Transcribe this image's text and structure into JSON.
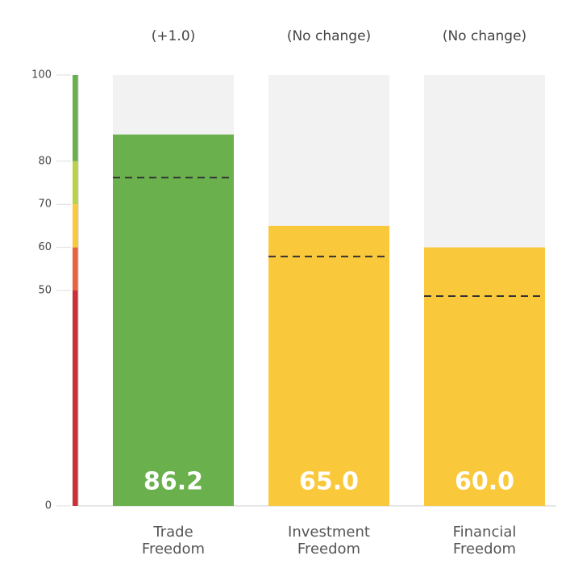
{
  "chart_data": {
    "type": "bar",
    "categories": [
      "Trade Freedom",
      "Investment Freedom",
      "Financial Freedom"
    ],
    "values": [
      86.2,
      65.0,
      60.0
    ],
    "value_labels": [
      "86.2",
      "65.0",
      "60.0"
    ],
    "annotations": [
      "(+1.0)",
      "(No change)",
      "(No change)"
    ],
    "colors": [
      "#6ab04c",
      "#f9c93b",
      "#f9c93b"
    ],
    "reference_values": [
      76.2,
      57.9,
      48.7
    ],
    "ylim": [
      0,
      100
    ],
    "yticks": [
      0,
      50,
      60,
      70,
      80,
      100
    ],
    "color_bands": [
      {
        "from": 0,
        "to": 50,
        "color": "#c9303a"
      },
      {
        "from": 50,
        "to": 60,
        "color": "#e8643c"
      },
      {
        "from": 60,
        "to": 70,
        "color": "#f9c93b"
      },
      {
        "from": 70,
        "to": 80,
        "color": "#b9d24a"
      },
      {
        "from": 80,
        "to": 100,
        "color": "#6ab04c"
      }
    ]
  }
}
